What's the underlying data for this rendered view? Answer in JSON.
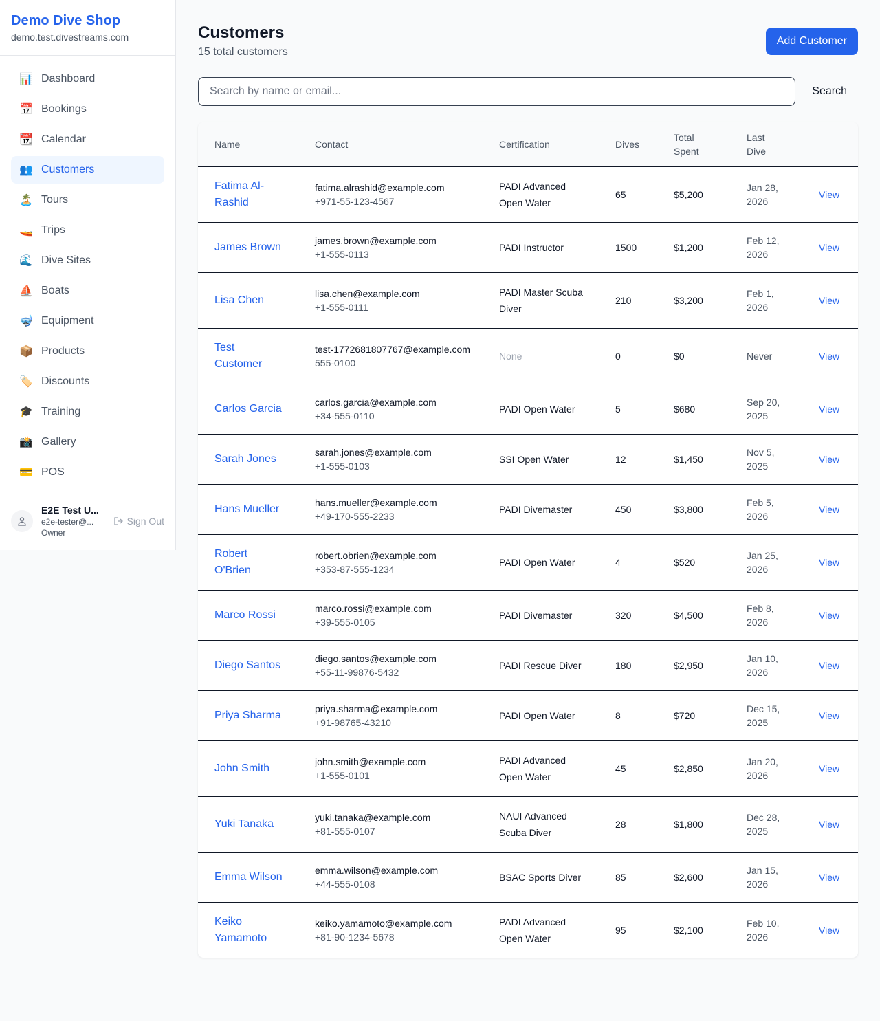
{
  "sidebar": {
    "brand": "Demo Dive Shop",
    "domain": "demo.test.divestreams.com",
    "items": [
      {
        "label": "Dashboard",
        "icon": "📊"
      },
      {
        "label": "Bookings",
        "icon": "📅"
      },
      {
        "label": "Calendar",
        "icon": "📆"
      },
      {
        "label": "Customers",
        "icon": "👥",
        "active": true
      },
      {
        "label": "Tours",
        "icon": "🏝️"
      },
      {
        "label": "Trips",
        "icon": "🚤"
      },
      {
        "label": "Dive Sites",
        "icon": "🌊"
      },
      {
        "label": "Boats",
        "icon": "⛵"
      },
      {
        "label": "Equipment",
        "icon": "🤿"
      },
      {
        "label": "Products",
        "icon": "📦"
      },
      {
        "label": "Discounts",
        "icon": "🏷️"
      },
      {
        "label": "Training",
        "icon": "🎓"
      },
      {
        "label": "Gallery",
        "icon": "📸"
      },
      {
        "label": "POS",
        "icon": "💳"
      }
    ],
    "user": {
      "name": "E2E Test U...",
      "email": "e2e-tester@...",
      "role": "Owner",
      "sign_out": "Sign Out"
    }
  },
  "header": {
    "title": "Customers",
    "subtitle": "15 total customers",
    "add_label": "Add Customer"
  },
  "search": {
    "placeholder": "Search by name or email...",
    "value": "",
    "button": "Search"
  },
  "table": {
    "columns": [
      "Name",
      "Contact",
      "Certification",
      "Dives",
      "Total Spent",
      "Last Dive",
      ""
    ],
    "view_label": "View",
    "rows": [
      {
        "name": "Fatima Al-Rashid",
        "email": "fatima.alrashid@example.com",
        "phone": "+971-55-123-4567",
        "cert": "PADI Advanced Open Water",
        "dives": "65",
        "spent": "$5,200",
        "last": "Jan 28, 2026"
      },
      {
        "name": "James Brown",
        "email": "james.brown@example.com",
        "phone": "+1-555-0113",
        "cert": "PADI Instructor",
        "dives": "1500",
        "spent": "$1,200",
        "last": "Feb 12, 2026"
      },
      {
        "name": "Lisa Chen",
        "email": "lisa.chen@example.com",
        "phone": "+1-555-0111",
        "cert": "PADI Master Scuba Diver",
        "dives": "210",
        "spent": "$3,200",
        "last": "Feb 1, 2026"
      },
      {
        "name": "Test Customer",
        "email": "test-1772681807767@example.com",
        "phone": "555-0100",
        "cert": "None",
        "dives": "0",
        "spent": "$0",
        "last": "Never"
      },
      {
        "name": "Carlos Garcia",
        "email": "carlos.garcia@example.com",
        "phone": "+34-555-0110",
        "cert": "PADI Open Water",
        "dives": "5",
        "spent": "$680",
        "last": "Sep 20, 2025"
      },
      {
        "name": "Sarah Jones",
        "email": "sarah.jones@example.com",
        "phone": "+1-555-0103",
        "cert": "SSI Open Water",
        "dives": "12",
        "spent": "$1,450",
        "last": "Nov 5, 2025"
      },
      {
        "name": "Hans Mueller",
        "email": "hans.mueller@example.com",
        "phone": "+49-170-555-2233",
        "cert": "PADI Divemaster",
        "dives": "450",
        "spent": "$3,800",
        "last": "Feb 5, 2026"
      },
      {
        "name": "Robert O'Brien",
        "email": "robert.obrien@example.com",
        "phone": "+353-87-555-1234",
        "cert": "PADI Open Water",
        "dives": "4",
        "spent": "$520",
        "last": "Jan 25, 2026"
      },
      {
        "name": "Marco Rossi",
        "email": "marco.rossi@example.com",
        "phone": "+39-555-0105",
        "cert": "PADI Divemaster",
        "dives": "320",
        "spent": "$4,500",
        "last": "Feb 8, 2026"
      },
      {
        "name": "Diego Santos",
        "email": "diego.santos@example.com",
        "phone": "+55-11-99876-5432",
        "cert": "PADI Rescue Diver",
        "dives": "180",
        "spent": "$2,950",
        "last": "Jan 10, 2026"
      },
      {
        "name": "Priya Sharma",
        "email": "priya.sharma@example.com",
        "phone": "+91-98765-43210",
        "cert": "PADI Open Water",
        "dives": "8",
        "spent": "$720",
        "last": "Dec 15, 2025"
      },
      {
        "name": "John Smith",
        "email": "john.smith@example.com",
        "phone": "+1-555-0101",
        "cert": "PADI Advanced Open Water",
        "dives": "45",
        "spent": "$2,850",
        "last": "Jan 20, 2026"
      },
      {
        "name": "Yuki Tanaka",
        "email": "yuki.tanaka@example.com",
        "phone": "+81-555-0107",
        "cert": "NAUI Advanced Scuba Diver",
        "dives": "28",
        "spent": "$1,800",
        "last": "Dec 28, 2025"
      },
      {
        "name": "Emma Wilson",
        "email": "emma.wilson@example.com",
        "phone": "+44-555-0108",
        "cert": "BSAC Sports Diver",
        "dives": "85",
        "spent": "$2,600",
        "last": "Jan 15, 2026"
      },
      {
        "name": "Keiko Yamamoto",
        "email": "keiko.yamamoto@example.com",
        "phone": "+81-90-1234-5678",
        "cert": "PADI Advanced Open Water",
        "dives": "95",
        "spent": "$2,100",
        "last": "Feb 10, 2026"
      }
    ]
  },
  "colors": {
    "accent": "#2563eb",
    "active_bg": "#eff6ff"
  }
}
